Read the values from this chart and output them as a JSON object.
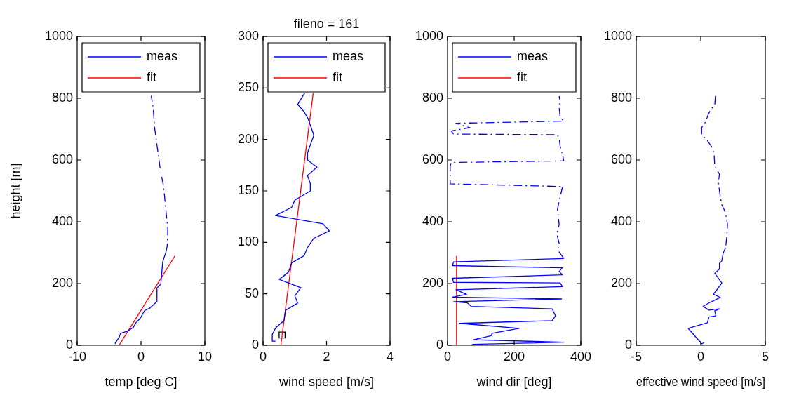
{
  "chart_data": [
    {
      "type": "line",
      "xlabel": "temp [deg C]",
      "ylabel": "height [m]",
      "xlim": [
        -10,
        10
      ],
      "xticks": [
        -10,
        0,
        10
      ],
      "ylim": [
        0,
        1000
      ],
      "yticks": [
        0,
        200,
        400,
        600,
        800,
        1000
      ],
      "legend": "top",
      "series": [
        {
          "name": "meas",
          "color": "#0000ff",
          "line_style": "solid",
          "x": [
            -4.1,
            -3.4,
            -3.2,
            -2.1,
            -1.2,
            -0.8,
            -0.1,
            0.55,
            1.35,
            2.45,
            2.5,
            3.1,
            3.4,
            3.9
          ],
          "values": [
            5,
            27,
            39,
            46,
            58,
            73,
            88,
            112,
            120,
            141,
            186,
            198,
            270,
            302
          ]
        },
        {
          "color": "#0000ff",
          "line_style": "dashed",
          "x": [
            3.9,
            4.1,
            4.2,
            3.9,
            3.55,
            3.0,
            2.5,
            2.15,
            1.9,
            1.6
          ],
          "values": [
            302,
            320,
            376,
            436,
            512,
            573,
            648,
            702,
            770,
            808
          ]
        },
        {
          "name": "fit",
          "color": "#ff0000",
          "line_style": "solid",
          "x": [
            -3.4,
            5.3
          ],
          "values": [
            1,
            289
          ]
        }
      ]
    },
    {
      "type": "line",
      "title": "fileno = 161",
      "xlabel": "wind speed [m/s]",
      "xlim": [
        0,
        4
      ],
      "xticks": [
        0,
        2,
        4
      ],
      "ylim": [
        0,
        300
      ],
      "yticks": [
        0,
        50,
        100,
        150,
        200,
        250,
        300
      ],
      "legend": "top",
      "series": [
        {
          "name": "meas",
          "color": "#0000ff",
          "line_style": "solid",
          "x": [
            0.39,
            0.29,
            0.29,
            0.4,
            0.66,
            0.71,
            1.09,
            1.0,
            1.19,
            0.51,
            0.8,
            0.9,
            1.29,
            1.4,
            1.6,
            2.09,
            1.89,
            0.39,
            0.9,
            1.0,
            1.49,
            1.49,
            1.4,
            1.7,
            1.4,
            1.4,
            1.6,
            1.42,
            1.29,
            1.09,
            1.31
          ],
          "values": [
            4,
            4,
            10.5,
            17,
            24,
            34,
            41,
            48,
            56,
            64,
            71,
            80,
            87,
            95,
            104,
            111,
            118,
            126,
            134,
            141,
            150,
            157,
            165,
            173,
            180,
            187,
            204,
            220,
            227,
            234,
            245
          ]
        },
        {
          "name": "fit",
          "color": "#ff0000",
          "line_style": "solid",
          "x": [
            0.56,
            1.58
          ],
          "values": [
            0,
            245
          ]
        },
        {
          "type": "scatter",
          "color": "#000000",
          "marker": "square",
          "x": [
            0.6
          ],
          "values": [
            10
          ]
        }
      ]
    },
    {
      "type": "line",
      "xlabel": "wind dir [deg]",
      "xlim": [
        0,
        400
      ],
      "xticks": [
        0,
        200,
        400
      ],
      "ylim": [
        0,
        1000
      ],
      "yticks": [
        0,
        200,
        400,
        600,
        800,
        1000
      ],
      "legend": "top",
      "series": [
        {
          "name": "meas",
          "color": "#0000ff",
          "line_style": "solid",
          "x": [
            74,
            349,
            78,
            131,
            134,
            215,
            36,
            314,
            324,
            314,
            71,
            60,
            18,
            342,
            15,
            57,
            25,
            345,
            338,
            18,
            15,
            345,
            335,
            345,
            15,
            18,
            349
          ],
          "values": [
            3,
            10,
            18,
            31,
            39,
            55,
            71,
            80,
            95,
            118,
            126,
            137,
            141,
            150,
            156,
            165,
            180,
            190,
            202,
            204,
            217,
            228,
            239,
            251,
            258,
            270,
            281
          ]
        },
        {
          "color": "#0000ff",
          "line_style": "dashed",
          "x": [
            349,
            331,
            335,
            328,
            335,
            330,
            335,
            345,
            349,
            8,
            8,
            8,
            11,
            349,
            345,
            338,
            335,
            328,
            18,
            11,
            67,
            25,
            349,
            338,
            335,
            338,
            335
          ],
          "values": [
            281,
            308,
            330,
            361,
            391,
            440,
            467,
            512,
            514,
            523,
            549,
            580,
            592,
            597,
            618,
            645,
            671,
            682,
            684,
            694,
            705,
            719,
            726,
            739,
            770,
            789,
            807
          ]
        },
        {
          "name": "fit",
          "color": "#ff0000",
          "line_style": "solid",
          "x": [
            27,
            27
          ],
          "values": [
            0,
            289
          ]
        }
      ]
    },
    {
      "type": "line",
      "xlabel": "effective wind speed [m/s]",
      "xlim": [
        -5,
        5
      ],
      "xticks": [
        -5,
        0,
        5
      ],
      "ylim": [
        0,
        1000
      ],
      "yticks": [
        0,
        200,
        400,
        600,
        800,
        1000
      ],
      "series": [
        {
          "color": "#0000ff",
          "line_style": "solid",
          "x": [
            0.07,
            0.25,
            0.07,
            -0.98,
            0.52,
            0.63,
            1.17,
            1.08,
            1.45,
            0.63,
            0.18,
            0.63,
            1.51,
            0.97,
            1.17,
            1.63,
            1.08,
            1.45,
            1.45,
            1.63,
            1.74,
            1.92
          ],
          "values": [
            5,
            8,
            5,
            55,
            73,
            92,
            95,
            111,
            118,
            114,
            126,
            137,
            155,
            166,
            175,
            202,
            233,
            247,
            266,
            273,
            300,
            315
          ]
        },
        {
          "color": "#0000ff",
          "line_style": "dashed",
          "x": [
            1.14,
            1.08,
            0.81,
            0.57,
            0.39,
            0.07,
            0.07,
            0.49,
            0.81,
            1.03,
            1.08,
            1.45,
            1.36,
            1.51,
            1.63,
            1.92,
            2.07,
            2.02,
            1.92
          ],
          "values": [
            807,
            777,
            766,
            747,
            724,
            705,
            682,
            664,
            645,
            622,
            580,
            554,
            527,
            482,
            455,
            429,
            391,
            353,
            315
          ]
        }
      ]
    }
  ]
}
